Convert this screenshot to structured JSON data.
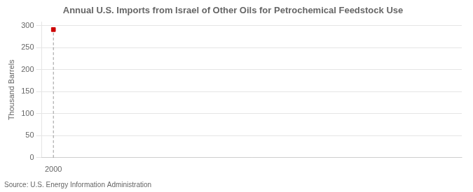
{
  "chart_data": {
    "type": "scatter",
    "title": "Annual U.S. Imports from Israel of Other Oils for Petrochemical Feedstock Use",
    "ylabel": "Thousand Barrels",
    "annotations": [
      "Source: U.S. Energy Information Administration"
    ],
    "x": [
      2000
    ],
    "values": [
      291
    ],
    "color": "#cc0000",
    "marker": "square",
    "xlim": [
      1999.4,
      2021
    ],
    "xticks": [
      2000
    ],
    "ylim": [
      0,
      308
    ],
    "yticks": [
      0,
      50,
      100,
      150,
      200,
      250,
      300
    ],
    "grid": true
  }
}
